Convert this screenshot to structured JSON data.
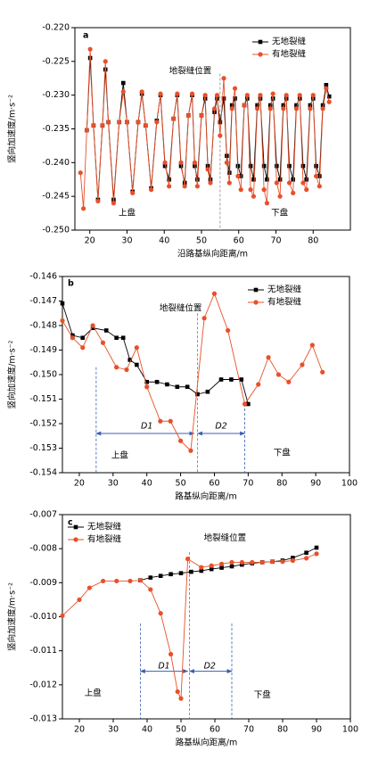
{
  "chart_data": [
    {
      "type": "line",
      "panel": "a",
      "x_label": "沿路基纵向距离/m",
      "y_label": "竖向加速度/m·s⁻²",
      "legend": "upper right",
      "xlim": [
        16,
        90
      ],
      "xticks": [
        20,
        30,
        40,
        50,
        60,
        70,
        80
      ],
      "ylim": [
        -0.25,
        -0.22
      ],
      "yticks": [
        {
          "value": -0.25,
          "label": "-0.250"
        },
        -0.245,
        {
          "value": -0.24,
          "label": "-0.240"
        },
        -0.235,
        {
          "value": -0.23,
          "label": "-0.230"
        },
        -0.225,
        {
          "value": -0.22,
          "label": "-0.220"
        }
      ],
      "annotations": [
        "地裂缝位置",
        "上盘",
        "下盘"
      ],
      "series": [
        {
          "name": "无地裂缝",
          "color": "#000000",
          "marker": "square",
          "x": [
            17.5,
            18.3,
            19.2,
            20.1,
            21,
            22.2,
            23.4,
            24.2,
            25,
            26.4,
            27.9,
            29,
            30,
            31.5,
            33,
            34,
            35,
            36.5,
            38,
            39,
            40.2,
            41.3,
            42.5,
            43.5,
            44.5,
            45.5,
            46.5,
            47.5,
            48.2,
            48.9,
            50,
            51,
            51.7,
            52.4,
            53.5,
            54.2,
            55,
            56,
            56.8,
            57.5,
            58.2,
            59,
            59.8,
            60.6,
            61.5,
            62.3,
            63.2,
            64,
            65,
            65.8,
            66.8,
            67.6,
            68.5,
            69.2,
            70.2,
            71.1,
            72,
            72.8,
            73.6,
            74.6,
            75.5,
            76.4,
            77.3,
            78.2,
            79.2,
            80,
            80.8,
            81.7,
            82.6,
            83.5,
            84.3
          ],
          "values": [
            null,
            null,
            -0.2352,
            -0.2245,
            -0.2345,
            -0.2455,
            -0.2345,
            -0.2262,
            -0.234,
            -0.2455,
            -0.234,
            -0.2282,
            -0.234,
            -0.2443,
            -0.234,
            -0.2298,
            -0.2345,
            -0.2438,
            -0.2338,
            -0.23,
            -0.2405,
            -0.2425,
            -0.2335,
            -0.23,
            -0.2405,
            -0.243,
            -0.233,
            -0.23,
            -0.2405,
            -0.2425,
            -0.233,
            -0.2305,
            -0.2405,
            -0.2425,
            -0.2325,
            -0.2305,
            -0.234,
            -0.2305,
            -0.239,
            -0.2415,
            -0.2315,
            -0.2305,
            -0.2405,
            -0.242,
            -0.2315,
            -0.2305,
            -0.2405,
            -0.2425,
            -0.2315,
            -0.2305,
            -0.2405,
            -0.2425,
            -0.2315,
            -0.2305,
            -0.2405,
            -0.2425,
            -0.2315,
            -0.2305,
            -0.2405,
            -0.2425,
            -0.2315,
            -0.2305,
            -0.2405,
            -0.2425,
            -0.2315,
            -0.2305,
            -0.2405,
            -0.242,
            -0.2315,
            -0.2285,
            -0.2302
          ]
        },
        {
          "name": "有地裂缝",
          "color": "#e8502a",
          "marker": "circle",
          "x": [
            17.5,
            18.3,
            19.2,
            20.1,
            21,
            22.2,
            23.4,
            24.2,
            25,
            26.4,
            27.9,
            29,
            30,
            31.5,
            33,
            34,
            35,
            36.5,
            38,
            39,
            40.2,
            41.3,
            42.5,
            43.5,
            44.5,
            45.5,
            46.5,
            47.5,
            48.2,
            48.9,
            50,
            51,
            51.7,
            52.4,
            53.5,
            54.2,
            55,
            56,
            56.8,
            57.5,
            58.2,
            59,
            59.8,
            60.6,
            61.5,
            62.3,
            63.2,
            64,
            65,
            65.8,
            66.8,
            67.6,
            68.5,
            69.2,
            70.2,
            71.1,
            72,
            72.8,
            73.6,
            74.6,
            75.5,
            76.4,
            77.3,
            78.2,
            79.2,
            80,
            80.8,
            81.7,
            82.6,
            83.5,
            84.3
          ],
          "values": [
            -0.2415,
            -0.2468,
            -0.2352,
            -0.2232,
            -0.2345,
            -0.2457,
            -0.2345,
            -0.225,
            -0.234,
            -0.246,
            -0.234,
            -0.2295,
            -0.234,
            -0.2445,
            -0.234,
            -0.2295,
            -0.2345,
            -0.244,
            -0.234,
            -0.2298,
            -0.24,
            -0.2435,
            -0.2335,
            -0.2298,
            -0.24,
            -0.2435,
            -0.233,
            -0.2298,
            -0.24,
            -0.2435,
            -0.233,
            -0.23,
            -0.241,
            -0.243,
            -0.232,
            -0.23,
            -0.236,
            -0.2275,
            -0.24,
            -0.243,
            -0.232,
            -0.229,
            -0.242,
            -0.244,
            -0.2315,
            -0.23,
            -0.244,
            -0.245,
            -0.232,
            -0.23,
            -0.244,
            -0.246,
            -0.232,
            -0.2298,
            -0.243,
            -0.245,
            -0.232,
            -0.23,
            -0.243,
            -0.2445,
            -0.232,
            -0.23,
            -0.243,
            -0.244,
            -0.232,
            -0.23,
            -0.242,
            -0.2435,
            -0.232,
            -0.229,
            -0.231
          ]
        }
      ]
    },
    {
      "type": "line",
      "panel": "b",
      "x_label": "路基纵向距离/m",
      "y_label": "竖向加速度/m·s⁻²",
      "legend": "upper right",
      "xlim": [
        15,
        100
      ],
      "xticks": [
        20,
        30,
        40,
        50,
        60,
        70,
        80,
        90,
        100
      ],
      "ylim": [
        -0.154,
        -0.146
      ],
      "yticks": [
        -0.154,
        -0.153,
        -0.152,
        -0.151,
        {
          "value": -0.15,
          "label": "-0.150"
        },
        -0.149,
        -0.148,
        -0.147,
        -0.146
      ],
      "annotations": [
        "地裂缝位置",
        "D1",
        "D2",
        "上盘",
        "下盘"
      ],
      "series": [
        {
          "name": "无地裂缝",
          "color": "#000000",
          "marker": "square",
          "x": [
            15,
            18,
            21,
            24,
            28,
            31,
            33,
            35,
            37,
            40,
            43,
            46,
            49,
            52,
            55,
            58,
            62,
            65,
            68,
            70
          ],
          "values": [
            -0.1471,
            -0.1484,
            -0.1485,
            -0.1481,
            -0.1482,
            -0.1485,
            -0.1485,
            -0.1494,
            -0.1496,
            -0.1503,
            -0.1503,
            -0.1504,
            -0.1505,
            -0.1505,
            -0.1508,
            -0.1507,
            -0.1502,
            -0.1502,
            -0.1502,
            -0.1512
          ]
        },
        {
          "name": "有地裂缝",
          "color": "#e8502a",
          "marker": "circle",
          "x": [
            15,
            18,
            21,
            24,
            27,
            31,
            34,
            37,
            40,
            44,
            47,
            50,
            53,
            57,
            60,
            64,
            69,
            73,
            76,
            79,
            82,
            86,
            89,
            92
          ],
          "values": [
            -0.1478,
            -0.1485,
            -0.1489,
            -0.148,
            -0.1487,
            -0.1497,
            -0.1498,
            -0.1489,
            -0.1505,
            -0.1519,
            -0.1519,
            -0.1527,
            -0.1531,
            -0.1477,
            -0.1467,
            -0.1482,
            -0.1512,
            -0.1504,
            -0.1493,
            -0.15,
            -0.1503,
            -0.1496,
            -0.1488,
            -0.1499
          ]
        }
      ]
    },
    {
      "type": "line",
      "panel": "c",
      "x_label": "路基纵向距离/m",
      "y_label": "竖向加速度/m·s⁻²",
      "legend": "upper left",
      "xlim": [
        15,
        100
      ],
      "xticks": [
        20,
        30,
        40,
        50,
        60,
        70,
        80,
        90,
        100
      ],
      "ylim": [
        -0.013,
        -0.007
      ],
      "yticks": [
        -0.013,
        -0.012,
        -0.011,
        {
          "value": -0.01,
          "label": "-0.010"
        },
        -0.009,
        -0.008,
        -0.007
      ],
      "annotations": [
        "地裂缝位置",
        "D1",
        "D2",
        "上盘",
        "下盘"
      ],
      "series": [
        {
          "name": "无地裂缝",
          "color": "#000000",
          "marker": "square",
          "x": [
            38,
            41,
            44,
            47,
            50,
            53,
            56,
            59,
            62,
            65,
            68,
            71,
            74,
            77,
            80,
            83,
            87,
            90
          ],
          "values": [
            -0.00893,
            -0.00885,
            -0.0088,
            -0.00875,
            -0.00872,
            -0.00868,
            -0.00865,
            -0.0086,
            -0.00856,
            -0.00852,
            -0.00847,
            -0.00843,
            -0.0084,
            -0.00838,
            -0.00835,
            -0.00827,
            -0.00812,
            -0.00797
          ]
        },
        {
          "name": "有地裂缝",
          "color": "#e8502a",
          "marker": "circle",
          "x": [
            15,
            20,
            23,
            27,
            31,
            35,
            38,
            41,
            44,
            47,
            49,
            50,
            52,
            56,
            59,
            62,
            65,
            68,
            71,
            74,
            77,
            80,
            83,
            87,
            90
          ],
          "values": [
            -0.00997,
            -0.0095,
            -0.00915,
            -0.00895,
            -0.00895,
            -0.00895,
            -0.00893,
            -0.0092,
            -0.0099,
            -0.0111,
            -0.0122,
            -0.0124,
            -0.0083,
            -0.00855,
            -0.0085,
            -0.00845,
            -0.0084,
            -0.0084,
            -0.0084,
            -0.0084,
            -0.00838,
            -0.00838,
            -0.00835,
            -0.00828,
            -0.00815
          ]
        }
      ]
    }
  ]
}
